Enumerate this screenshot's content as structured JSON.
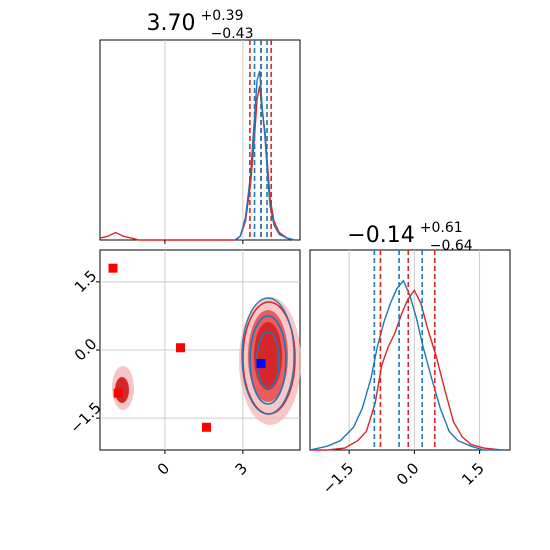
{
  "chart_data": [
    {
      "panel": "top-left",
      "type": "line",
      "title": {
        "main": "3.70",
        "sup": "+0.39",
        "sub": "−0.43"
      },
      "xlim": [
        -2.5,
        5.2
      ],
      "grid": true,
      "quantile_lines": {
        "red": [
          3.27,
          3.7,
          4.09
        ],
        "blue": [
          3.45,
          3.7,
          3.93
        ]
      },
      "series": [
        {
          "color": "#d62728",
          "x": [
            -2.5,
            -2.2,
            -1.9,
            -1.6,
            -1.3,
            -1.0,
            2.7,
            2.9,
            3.1,
            3.3,
            3.45,
            3.55,
            3.65,
            3.75,
            3.85,
            3.95,
            4.05,
            4.2,
            4.4,
            4.7,
            5.0
          ],
          "y": [
            0.01,
            0.02,
            0.04,
            0.02,
            0.01,
            0.0,
            0.0,
            0.02,
            0.1,
            0.3,
            0.55,
            0.75,
            0.82,
            0.68,
            0.58,
            0.4,
            0.22,
            0.1,
            0.04,
            0.01,
            0.0
          ]
        },
        {
          "color": "#1f77b4",
          "x": [
            2.7,
            2.9,
            3.1,
            3.3,
            3.45,
            3.55,
            3.65,
            3.75,
            3.85,
            3.95,
            4.05,
            4.2,
            4.4,
            4.7,
            5.0
          ],
          "y": [
            0.0,
            0.02,
            0.12,
            0.35,
            0.65,
            0.85,
            0.9,
            0.7,
            0.55,
            0.35,
            0.18,
            0.08,
            0.03,
            0.01,
            0.0
          ]
        }
      ]
    },
    {
      "panel": "bottom-left",
      "type": "scatter",
      "xlim": [
        -2.5,
        5.2
      ],
      "ylim": [
        -2.2,
        2.2
      ],
      "xticks": [
        "0",
        "3"
      ],
      "xtick_values": [
        0,
        3
      ],
      "yticks": [
        "−1.5",
        "0.0",
        "1.5"
      ],
      "ytick_values": [
        -1.5,
        0,
        1.5
      ],
      "grid": true,
      "markers": {
        "red": [
          [
            -2.0,
            1.8
          ],
          [
            0.6,
            0.05
          ],
          [
            1.6,
            -1.7
          ],
          [
            -1.8,
            -0.95
          ]
        ],
        "blue": [
          [
            3.7,
            -0.3
          ]
        ]
      }
    },
    {
      "panel": "bottom-right",
      "type": "line",
      "title": {
        "main": "−0.14",
        "sup": "+0.61",
        "sub": "−0.64"
      },
      "xlim": [
        -2.4,
        2.2
      ],
      "xticks": [
        "−1.5",
        "0.0",
        "1.5"
      ],
      "xtick_values": [
        -1.5,
        0,
        1.5
      ],
      "grid": true,
      "quantile_lines": {
        "red": [
          -0.78,
          -0.14,
          0.47
        ],
        "blue": [
          -0.92,
          -0.35,
          0.18
        ]
      },
      "series": [
        {
          "color": "#d62728",
          "x": [
            -2.4,
            -2.0,
            -1.6,
            -1.3,
            -1.1,
            -0.9,
            -0.75,
            -0.6,
            -0.45,
            -0.3,
            -0.15,
            0.0,
            0.15,
            0.3,
            0.5,
            0.7,
            0.9,
            1.1,
            1.3,
            1.6,
            2.0
          ],
          "y": [
            0.0,
            0.0,
            0.01,
            0.05,
            0.1,
            0.25,
            0.45,
            0.55,
            0.62,
            0.72,
            0.8,
            0.85,
            0.78,
            0.65,
            0.5,
            0.32,
            0.15,
            0.07,
            0.03,
            0.01,
            0.0
          ]
        },
        {
          "color": "#1f77b4",
          "x": [
            -2.4,
            -2.0,
            -1.7,
            -1.4,
            -1.2,
            -1.0,
            -0.85,
            -0.7,
            -0.55,
            -0.4,
            -0.25,
            -0.1,
            0.05,
            0.2,
            0.4,
            0.6,
            0.8,
            1.0,
            1.3,
            1.6,
            2.0
          ],
          "y": [
            0.0,
            0.02,
            0.05,
            0.12,
            0.22,
            0.38,
            0.55,
            0.68,
            0.78,
            0.86,
            0.9,
            0.82,
            0.7,
            0.55,
            0.38,
            0.22,
            0.1,
            0.05,
            0.02,
            0.0,
            0.0
          ]
        }
      ]
    }
  ]
}
